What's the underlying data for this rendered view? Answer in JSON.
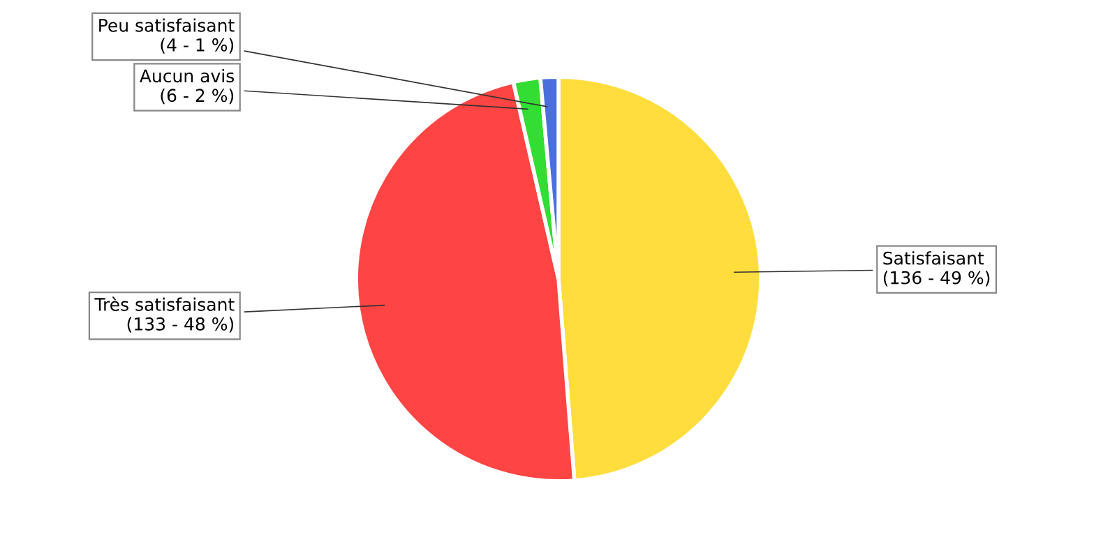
{
  "chart_data": {
    "type": "pie",
    "categories": [
      "Satisfaisant",
      "Très satisfaisant",
      "Aucun avis",
      "Peu satisfaisant"
    ],
    "values": [
      136,
      133,
      6,
      4
    ],
    "colors": [
      "#ffdd3c",
      "#ff4444",
      "#33dd33",
      "#4a6fdc"
    ],
    "value_labels": [
      "(136 - 49 %)",
      "(133 - 48 %)",
      "(6 - 2 %)",
      "(4 - 1 %)"
    ],
    "legend": false
  }
}
